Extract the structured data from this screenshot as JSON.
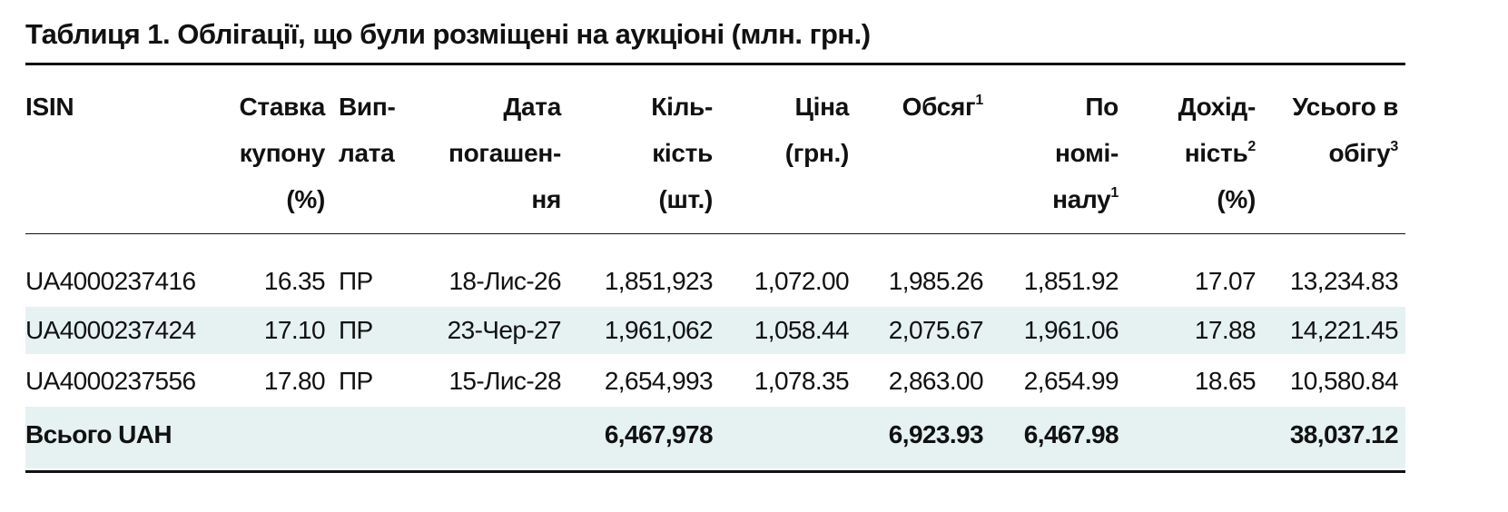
{
  "title": "Таблиця 1. Облігації, що були розміщені на аукціоні (млн. грн.)",
  "table": {
    "header": [
      [
        {
          "text": "ISIN"
        }
      ],
      [
        {
          "text": "Ставка"
        },
        {
          "text": "купону"
        },
        {
          "text": "(%)"
        }
      ],
      [
        {
          "text": "Вип-"
        },
        {
          "text": "лата"
        }
      ],
      [
        {
          "text": "Дата"
        },
        {
          "text": "погашен-"
        },
        {
          "text": "ня"
        }
      ],
      [
        {
          "text": "Кіль-"
        },
        {
          "text": "кість"
        },
        {
          "text": "(шт.)"
        }
      ],
      [
        {
          "text": "Ціна"
        },
        {
          "text": "(грн.)"
        }
      ],
      [
        {
          "text": "Обсяг",
          "sup": "1"
        }
      ],
      [
        {
          "text": "По"
        },
        {
          "text": "номі-"
        },
        {
          "text": "налу",
          "sup": "1"
        }
      ],
      [
        {
          "text": "Дохід-"
        },
        {
          "text": "ність",
          "sup": "2"
        },
        {
          "text": "(%)"
        }
      ],
      [
        {
          "text": "Усього в"
        },
        {
          "text": "обігу",
          "sup": "3"
        }
      ]
    ],
    "rows": [
      [
        "UA4000237416",
        "16.35",
        "ПР",
        "18-Лис-26",
        "1,851,923",
        "1,072.00",
        "1,985.26",
        "1,851.92",
        "17.07",
        "13,234.83"
      ],
      [
        "UA4000237424",
        "17.10",
        "ПР",
        "23-Чер-27",
        "1,961,062",
        "1,058.44",
        "2,075.67",
        "1,961.06",
        "17.88",
        "14,221.45"
      ],
      [
        "UA4000237556",
        "17.80",
        "ПР",
        "15-Лис-28",
        "2,654,993",
        "1,078.35",
        "2,863.00",
        "2,654.99",
        "18.65",
        "10,580.84"
      ]
    ],
    "total": {
      "label": "Всього UAH",
      "quantity": "6,467,978",
      "volume": "6,923.93",
      "nominal": "6,467.98",
      "outstanding": "38,037.12"
    }
  }
}
